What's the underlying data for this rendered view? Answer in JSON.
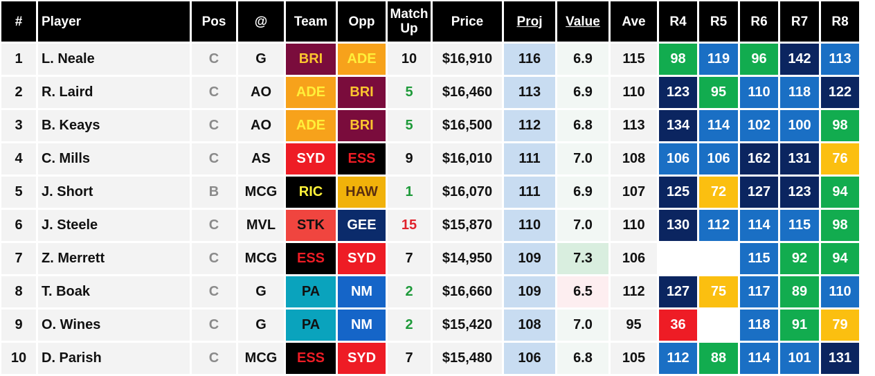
{
  "headers": {
    "num": "#",
    "player": "Player",
    "pos": "Pos",
    "venue": "@",
    "team": "Team",
    "opp": "Opp",
    "matchup_line1": "Match",
    "matchup_line2": "Up",
    "price": "Price",
    "proj": "Proj",
    "value": "Value",
    "ave": "Ave",
    "r4": "R4",
    "r5": "R5",
    "r6": "R6",
    "r7": "R7",
    "r8": "R8"
  },
  "team_colors": {
    "BRI": {
      "bg": "#7a0c3c",
      "fg": "#fbc52f"
    },
    "ADE": {
      "bg": "#f7a21b",
      "fg": "#ffef3a"
    },
    "SYD": {
      "bg": "#ee1c25",
      "fg": "#ffffff"
    },
    "ESS": {
      "bg": "#000000",
      "fg": "#ee1c25"
    },
    "RIC": {
      "bg": "#000000",
      "fg": "#fff33a"
    },
    "HAW": {
      "bg": "#f1b20a",
      "fg": "#5a2e0f"
    },
    "STK": {
      "bg": "#f0453f",
      "fg": "#111111"
    },
    "GEE": {
      "bg": "#0b2b6b",
      "fg": "#ffffff"
    },
    "PA": {
      "bg": "#0aa3bd",
      "fg": "#111111"
    },
    "NM": {
      "bg": "#1565c8",
      "fg": "#ffffff"
    }
  },
  "score_colors": {
    "red": "#ee1c25",
    "yellow": "#fbbf10",
    "green": "#12ac4f",
    "blue": "#1a6fc4",
    "navy": "#0b2560"
  },
  "rows": [
    {
      "num": "1",
      "player": "L. Neale",
      "pos": "C",
      "venue": "G",
      "team": "BRI",
      "opp": "ADE",
      "matchup": "10",
      "matchup_class": "",
      "price": "$16,910",
      "proj": "116",
      "value": "6.9",
      "value_class": "",
      "ave": "115",
      "rounds": [
        {
          "v": "98",
          "c": "green"
        },
        {
          "v": "119",
          "c": "blue"
        },
        {
          "v": "96",
          "c": "green"
        },
        {
          "v": "142",
          "c": "navy"
        },
        {
          "v": "113",
          "c": "blue"
        }
      ]
    },
    {
      "num": "2",
      "player": "R. Laird",
      "pos": "C",
      "venue": "AO",
      "team": "ADE",
      "opp": "BRI",
      "matchup": "5",
      "matchup_class": "good",
      "price": "$16,460",
      "proj": "113",
      "value": "6.9",
      "value_class": "",
      "ave": "110",
      "rounds": [
        {
          "v": "123",
          "c": "navy"
        },
        {
          "v": "95",
          "c": "green"
        },
        {
          "v": "110",
          "c": "blue"
        },
        {
          "v": "118",
          "c": "blue"
        },
        {
          "v": "122",
          "c": "navy"
        }
      ]
    },
    {
      "num": "3",
      "player": "B. Keays",
      "pos": "C",
      "venue": "AO",
      "team": "ADE",
      "opp": "BRI",
      "matchup": "5",
      "matchup_class": "good",
      "price": "$16,500",
      "proj": "112",
      "value": "6.8",
      "value_class": "",
      "ave": "113",
      "rounds": [
        {
          "v": "134",
          "c": "navy"
        },
        {
          "v": "114",
          "c": "blue"
        },
        {
          "v": "102",
          "c": "blue"
        },
        {
          "v": "100",
          "c": "blue"
        },
        {
          "v": "98",
          "c": "green"
        }
      ]
    },
    {
      "num": "4",
      "player": "C. Mills",
      "pos": "C",
      "venue": "AS",
      "team": "SYD",
      "opp": "ESS",
      "matchup": "9",
      "matchup_class": "",
      "price": "$16,010",
      "proj": "111",
      "value": "7.0",
      "value_class": "",
      "ave": "108",
      "rounds": [
        {
          "v": "106",
          "c": "blue"
        },
        {
          "v": "106",
          "c": "blue"
        },
        {
          "v": "162",
          "c": "navy"
        },
        {
          "v": "131",
          "c": "navy"
        },
        {
          "v": "76",
          "c": "yellow"
        }
      ]
    },
    {
      "num": "5",
      "player": "J. Short",
      "pos": "B",
      "venue": "MCG",
      "team": "RIC",
      "opp": "HAW",
      "matchup": "1",
      "matchup_class": "good",
      "price": "$16,070",
      "proj": "111",
      "value": "6.9",
      "value_class": "",
      "ave": "107",
      "rounds": [
        {
          "v": "125",
          "c": "navy"
        },
        {
          "v": "72",
          "c": "yellow"
        },
        {
          "v": "127",
          "c": "navy"
        },
        {
          "v": "123",
          "c": "navy"
        },
        {
          "v": "94",
          "c": "green"
        }
      ]
    },
    {
      "num": "6",
      "player": "J. Steele",
      "pos": "C",
      "venue": "MVL",
      "team": "STK",
      "opp": "GEE",
      "matchup": "15",
      "matchup_class": "bad",
      "price": "$15,870",
      "proj": "110",
      "value": "7.0",
      "value_class": "",
      "ave": "110",
      "rounds": [
        {
          "v": "130",
          "c": "navy"
        },
        {
          "v": "112",
          "c": "blue"
        },
        {
          "v": "114",
          "c": "blue"
        },
        {
          "v": "115",
          "c": "blue"
        },
        {
          "v": "98",
          "c": "green"
        }
      ]
    },
    {
      "num": "7",
      "player": "Z. Merrett",
      "pos": "C",
      "venue": "MCG",
      "team": "ESS",
      "opp": "SYD",
      "matchup": "7",
      "matchup_class": "",
      "price": "$14,950",
      "proj": "109",
      "value": "7.3",
      "value_class": "hi",
      "ave": "106",
      "rounds": [
        {
          "v": "",
          "c": "empty"
        },
        {
          "v": "",
          "c": "empty"
        },
        {
          "v": "115",
          "c": "blue"
        },
        {
          "v": "92",
          "c": "green"
        },
        {
          "v": "94",
          "c": "green"
        }
      ]
    },
    {
      "num": "8",
      "player": "T. Boak",
      "pos": "C",
      "venue": "G",
      "team": "PA",
      "opp": "NM",
      "matchup": "2",
      "matchup_class": "good",
      "price": "$16,660",
      "proj": "109",
      "value": "6.5",
      "value_class": "lo",
      "ave": "112",
      "rounds": [
        {
          "v": "127",
          "c": "navy"
        },
        {
          "v": "75",
          "c": "yellow"
        },
        {
          "v": "117",
          "c": "blue"
        },
        {
          "v": "89",
          "c": "green"
        },
        {
          "v": "110",
          "c": "blue"
        }
      ]
    },
    {
      "num": "9",
      "player": "O. Wines",
      "pos": "C",
      "venue": "G",
      "team": "PA",
      "opp": "NM",
      "matchup": "2",
      "matchup_class": "good",
      "price": "$15,420",
      "proj": "108",
      "value": "7.0",
      "value_class": "",
      "ave": "95",
      "rounds": [
        {
          "v": "36",
          "c": "red"
        },
        {
          "v": "",
          "c": "empty"
        },
        {
          "v": "118",
          "c": "blue"
        },
        {
          "v": "91",
          "c": "green"
        },
        {
          "v": "79",
          "c": "yellow"
        }
      ]
    },
    {
      "num": "10",
      "player": "D. Parish",
      "pos": "C",
      "venue": "MCG",
      "team": "ESS",
      "opp": "SYD",
      "matchup": "7",
      "matchup_class": "",
      "price": "$15,480",
      "proj": "106",
      "value": "6.8",
      "value_class": "",
      "ave": "105",
      "rounds": [
        {
          "v": "112",
          "c": "blue"
        },
        {
          "v": "88",
          "c": "green"
        },
        {
          "v": "114",
          "c": "blue"
        },
        {
          "v": "101",
          "c": "blue"
        },
        {
          "v": "131",
          "c": "navy"
        }
      ]
    }
  ]
}
